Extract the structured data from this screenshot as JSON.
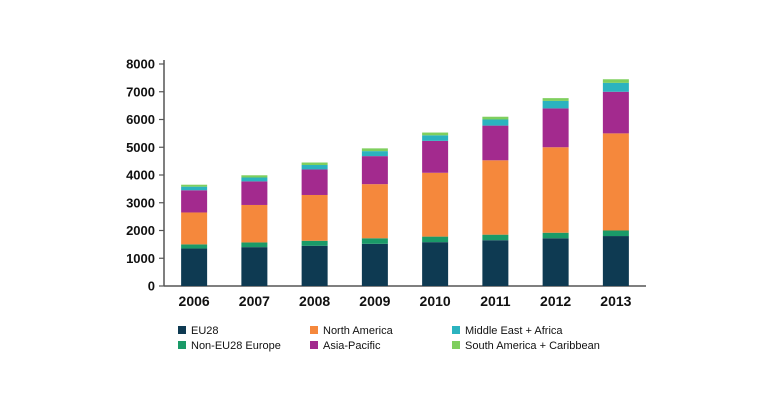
{
  "chart_data": {
    "type": "bar",
    "stacked": true,
    "categories": [
      "2006",
      "2007",
      "2008",
      "2009",
      "2010",
      "2011",
      "2012",
      "2013"
    ],
    "ylim": [
      0,
      8000
    ],
    "yticks": [
      0,
      1000,
      2000,
      3000,
      4000,
      5000,
      6000,
      7000,
      8000
    ],
    "grid": false,
    "legend_position": "bottom",
    "series": [
      {
        "name": "EU28",
        "color": "#0e3a52",
        "values": [
          1350,
          1400,
          1450,
          1520,
          1580,
          1650,
          1720,
          1800
        ]
      },
      {
        "name": "Non-EU28 Europe",
        "color": "#1a9a68",
        "values": [
          150,
          170,
          180,
          200,
          200,
          200,
          200,
          200
        ]
      },
      {
        "name": "North America",
        "color": "#f5883c",
        "values": [
          1150,
          1350,
          1650,
          1950,
          2300,
          2680,
          3080,
          3500
        ]
      },
      {
        "name": "Asia-Pacific",
        "color": "#a32a8e",
        "values": [
          800,
          850,
          920,
          1010,
          1150,
          1250,
          1400,
          1500
        ]
      },
      {
        "name": "Middle East + Africa",
        "color": "#2bb3bf",
        "values": [
          130,
          140,
          160,
          180,
          200,
          220,
          270,
          320
        ]
      },
      {
        "name": "South America + Caribbean",
        "color": "#7fcf5e",
        "values": [
          70,
          80,
          90,
          100,
          100,
          100,
          100,
          130
        ]
      }
    ],
    "legend_layout": [
      [
        "EU28",
        "North America",
        "Middle East + Africa"
      ],
      [
        "Non-EU28 Europe",
        "Asia-Pacific",
        "South America + Caribbean"
      ]
    ]
  }
}
